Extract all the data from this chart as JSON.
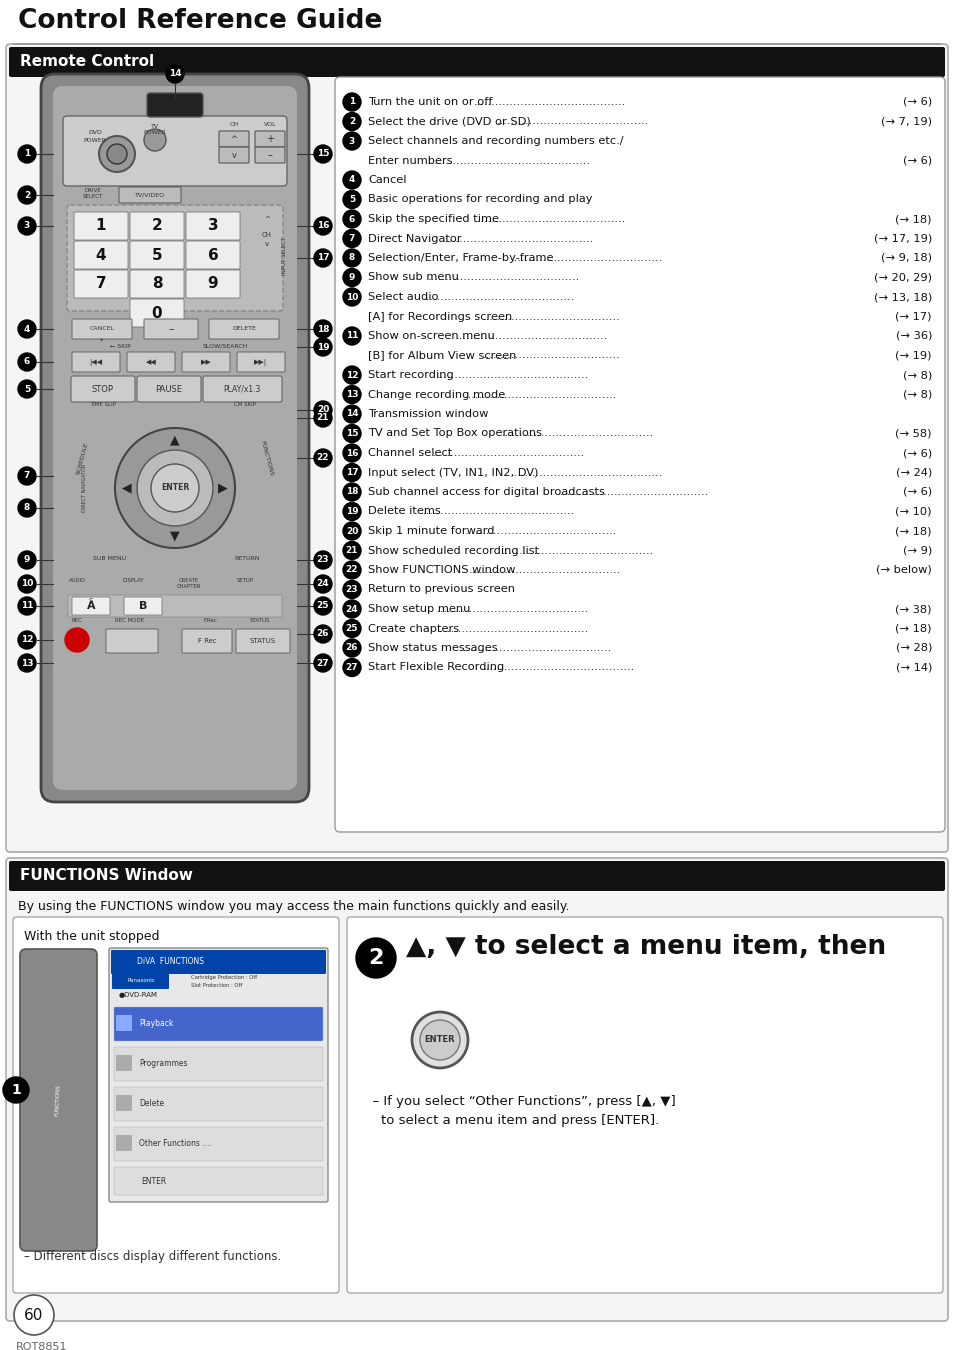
{
  "title": "Control Reference Guide",
  "section1_title": "Remote Control",
  "section2_title": "FUNCTIONS Window",
  "section2_desc": "By using the FUNCTIONS window you may access the main functions quickly and easily.",
  "remote_items": [
    {
      "num": 1,
      "text": "Turn the unit on or off",
      "dots": true,
      "ref": "(→ 6)"
    },
    {
      "num": 2,
      "text": "Select the drive (DVD or SD)",
      "dots": true,
      "ref": "(→ 7, 19)"
    },
    {
      "num": 3,
      "text": "Select channels and recording numbers etc./",
      "dots": false,
      "ref": "",
      "line2": "Enter numbers",
      "line2dots": true,
      "line2ref": "(→ 6)"
    },
    {
      "num": 4,
      "text": "Cancel",
      "dots": false,
      "ref": ""
    },
    {
      "num": 5,
      "text": "Basic operations for recording and play",
      "dots": false,
      "ref": ""
    },
    {
      "num": 6,
      "text": "Skip the specified time",
      "dots": true,
      "ref": "(→ 18)"
    },
    {
      "num": 7,
      "text": "Direct Navigator",
      "dots": true,
      "ref": "(→ 17, 19)"
    },
    {
      "num": 8,
      "text": "Selection/Enter, Frame-by-frame",
      "dots": true,
      "ref": "(→ 9, 18)"
    },
    {
      "num": 9,
      "text": "Show sub menu",
      "dots": true,
      "ref": "(→ 20, 29)"
    },
    {
      "num": 10,
      "text": "Select audio",
      "dots": true,
      "ref": "(→ 13, 18)",
      "sub": "[A] for Recordings screen",
      "sub_ref": "(→ 17)"
    },
    {
      "num": 11,
      "text": "Show on-screen menu",
      "dots": true,
      "ref": "(→ 36)",
      "sub": "[B] for Album View screen",
      "sub_ref": "(→ 19)"
    },
    {
      "num": 12,
      "text": "Start recording",
      "dots": true,
      "ref": "(→ 8)"
    },
    {
      "num": 13,
      "text": "Change recording mode",
      "dots": true,
      "ref": "(→ 8)"
    },
    {
      "num": 14,
      "text": "Transmission window",
      "dots": false,
      "ref": ""
    },
    {
      "num": 15,
      "text": "TV and Set Top Box operations",
      "dots": true,
      "ref": "(→ 58)"
    },
    {
      "num": 16,
      "text": "Channel select",
      "dots": true,
      "ref": "(→ 6)"
    },
    {
      "num": 17,
      "text": "Input select (TV, IN1, IN2, DV)",
      "dots": true,
      "ref": "(→ 24)"
    },
    {
      "num": 18,
      "text": "Sub channel access for digital broadcasts",
      "dots": true,
      "ref": "(→ 6)"
    },
    {
      "num": 19,
      "text": "Delete items",
      "dots": true,
      "ref": "(→ 10)"
    },
    {
      "num": 20,
      "text": "Skip 1 minute forward",
      "dots": true,
      "ref": "(→ 18)"
    },
    {
      "num": 21,
      "text": "Show scheduled recording list",
      "dots": true,
      "ref": "(→ 9)"
    },
    {
      "num": 22,
      "text": "Show FUNCTIONS window ",
      "dots": true,
      "ref": "(→ below)"
    },
    {
      "num": 23,
      "text": "Return to previous screen",
      "dots": false,
      "ref": ""
    },
    {
      "num": 24,
      "text": "Show setup menu",
      "dots": true,
      "ref": "(→ 38)"
    },
    {
      "num": 25,
      "text": "Create chapters",
      "dots": true,
      "ref": "(→ 18)"
    },
    {
      "num": 26,
      "text": "Show status messages",
      "dots": true,
      "ref": "(→ 28)"
    },
    {
      "num": 27,
      "text": "Start Flexible Recording ",
      "dots": true,
      "ref": "(→ 14)"
    }
  ],
  "functions_left_title": "With the unit stopped",
  "functions_right_text": "▲, ▼ to select a menu item, then",
  "functions_right_sub": "  – If you select “Other Functions”, press [▲, ▼]\n    to select a menu item and press [ENTER].",
  "functions_left_note": "– Different discs display different functions.",
  "page_num": "60",
  "model_num": "RQT8851",
  "bg_color": "#ffffff"
}
